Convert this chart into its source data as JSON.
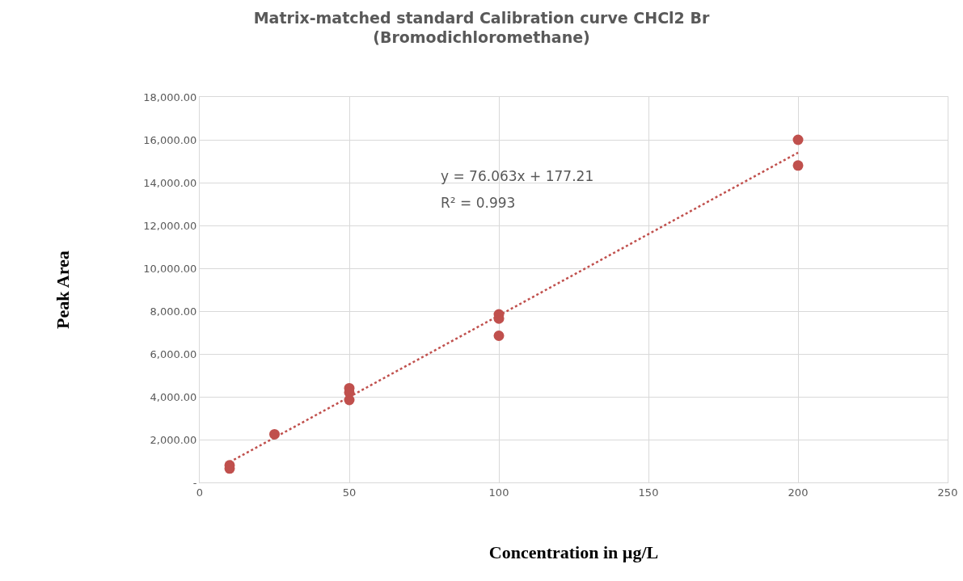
{
  "chart_data": {
    "type": "scatter",
    "title": "Matrix-matched standard Calibration curve CHCl2 Br\n(Bromodichloromethane)",
    "xlabel": "Concentration in µg/L",
    "ylabel": "Peak Area",
    "series": [
      {
        "color": "#c0504d",
        "marker": "circle",
        "x": [
          10,
          10,
          25,
          50,
          50,
          50,
          100,
          100,
          100,
          200,
          200
        ],
        "values": [
          800,
          650,
          2250,
          4400,
          4200,
          3850,
          7850,
          7650,
          6850,
          16000,
          14800
        ]
      },
      {
        "type": "line",
        "color": "#c0504d",
        "line_style": "dotted",
        "marker": "none",
        "x": [
          10,
          200
        ],
        "values": [
          950,
          15400
        ]
      }
    ],
    "annotations": [
      "y = 76.063x + 177.21",
      "R² = 0.993"
    ],
    "xlim": [
      0,
      250
    ],
    "xticks": [
      0,
      50,
      100,
      150,
      200,
      250
    ],
    "ylim": [
      0,
      18000
    ],
    "yticks": [
      {
        "value": 0,
        "label": "-"
      },
      {
        "value": 2000,
        "label": "2,000.00"
      },
      {
        "value": 4000,
        "label": "4,000.00"
      },
      {
        "value": 6000,
        "label": "6,000.00"
      },
      {
        "value": 8000,
        "label": "8,000.00"
      },
      {
        "value": 10000,
        "label": "10,000.00"
      },
      {
        "value": 12000,
        "label": "12,000.00"
      },
      {
        "value": 14000,
        "label": "14,000.00"
      },
      {
        "value": 16000,
        "label": "16,000.00"
      },
      {
        "value": 18000,
        "label": "18,000.00"
      }
    ],
    "grid": true
  }
}
